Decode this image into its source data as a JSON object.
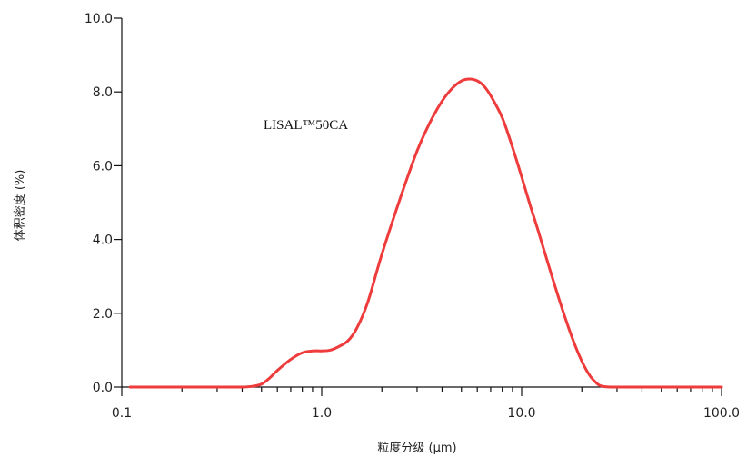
{
  "chart_data": {
    "type": "line",
    "x_scale": "log",
    "xlim": [
      0.1,
      100.0
    ],
    "ylim": [
      0.0,
      10.0
    ],
    "xlabel": "粒度分级 (μm)",
    "ylabel": "体积密度 (%)",
    "x_ticks": [
      0.1,
      1.0,
      10.0,
      100.0
    ],
    "x_tick_labels": [
      "0.1",
      "1.0",
      "10.0",
      "100.0"
    ],
    "y_ticks": [
      0.0,
      2.0,
      4.0,
      6.0,
      8.0,
      10.0
    ],
    "y_tick_labels": [
      "0.0",
      "2.0",
      "4.0",
      "6.0",
      "8.0",
      "10.0"
    ],
    "grid": false,
    "legend": "none",
    "annotation": "LISAL™50CA",
    "series": [
      {
        "color": "#ee3b3b",
        "x": [
          0.11,
          0.2,
          0.3,
          0.4,
          0.45,
          0.5,
          0.55,
          0.6,
          0.7,
          0.8,
          0.9,
          1.0,
          1.1,
          1.2,
          1.35,
          1.5,
          1.7,
          2.0,
          2.5,
          3.0,
          3.5,
          4.0,
          4.5,
          5.0,
          5.5,
          6.0,
          6.5,
          7.0,
          8.0,
          9.0,
          10.0,
          11.0,
          12.0,
          14.0,
          16.0,
          18.0,
          20.0,
          22.0,
          24.0,
          25.0,
          26.0,
          28.0,
          35.0,
          50.0,
          100.0
        ],
        "y": [
          0.0,
          0.0,
          0.0,
          0.0,
          0.02,
          0.08,
          0.25,
          0.45,
          0.75,
          0.93,
          0.98,
          0.98,
          1.0,
          1.08,
          1.25,
          1.6,
          2.3,
          3.6,
          5.2,
          6.4,
          7.2,
          7.75,
          8.1,
          8.3,
          8.35,
          8.3,
          8.15,
          7.9,
          7.3,
          6.5,
          5.7,
          4.95,
          4.3,
          3.1,
          2.1,
          1.3,
          0.7,
          0.3,
          0.08,
          0.03,
          0.01,
          0.0,
          0.0,
          0.0,
          0.0
        ]
      }
    ]
  }
}
